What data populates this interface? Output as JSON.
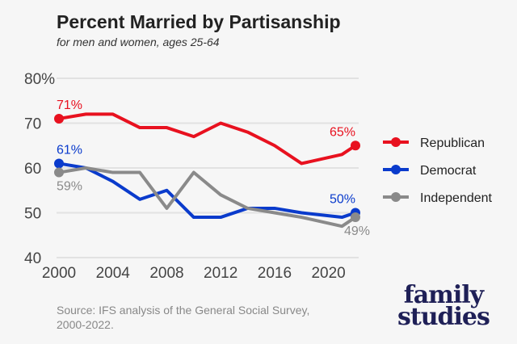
{
  "chart_data": {
    "type": "line",
    "title": "Percent Married by Partisanship",
    "subtitle": "for men and women, ages 25-64",
    "x": [
      2000,
      2002,
      2004,
      2006,
      2008,
      2010,
      2012,
      2014,
      2016,
      2018,
      2021,
      2022
    ],
    "xticks": [
      "2000",
      "2004",
      "2008",
      "2012",
      "2016",
      "2020"
    ],
    "yticks": [
      "40",
      "50",
      "60",
      "70",
      "80%"
    ],
    "ylim": [
      40,
      80
    ],
    "xlim": [
      2000,
      2022
    ],
    "grid": true,
    "legend": "right",
    "series": [
      {
        "name": "Republican",
        "color": "#e8111f",
        "values": [
          71,
          72,
          72,
          69,
          69,
          67,
          70,
          68,
          65,
          61,
          63,
          65
        ],
        "start_label": "71%",
        "end_label": "65%"
      },
      {
        "name": "Democrat",
        "color": "#0a3bcc",
        "values": [
          61,
          60,
          57,
          53,
          55,
          49,
          49,
          51,
          51,
          50,
          49,
          50
        ],
        "start_label": "61%",
        "end_label": "50%"
      },
      {
        "name": "Independent",
        "color": "#8a8a8a",
        "values": [
          59,
          60,
          59,
          59,
          51,
          59,
          54,
          51,
          50,
          49,
          47,
          49
        ],
        "start_label": "59%",
        "end_label": "49%"
      }
    ]
  },
  "source": "Source: IFS analysis of the General Social Survey, 2000-2022.",
  "logo": {
    "line1": "family",
    "line2": "studies"
  }
}
